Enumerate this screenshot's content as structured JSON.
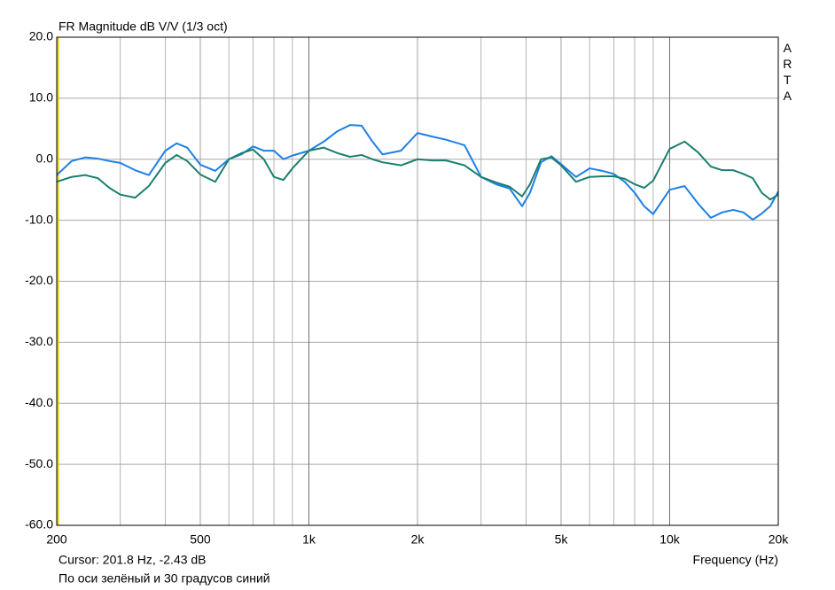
{
  "chart_data": {
    "type": "line",
    "title": "FR Magnitude dB V/V (1/3 oct)",
    "watermark": "ARTA",
    "x_label": "Frequency (Hz)",
    "cursor": {
      "label": "Cursor: 201.8 Hz, -2.43 dB",
      "x": 201.8,
      "color": "#e0d000"
    },
    "note": "По оси зелёный и 30 градусов синий",
    "x_scale": "log",
    "grid": true,
    "xlim": [
      200,
      20000
    ],
    "ylim": [
      -60,
      20
    ],
    "xticks": [
      200,
      500,
      {
        "value": 1000,
        "label": "1k"
      },
      {
        "value": 2000,
        "label": "2k"
      },
      {
        "value": 5000,
        "label": "5k"
      },
      {
        "value": 10000,
        "label": "10k"
      },
      {
        "value": 20000,
        "label": "20k"
      }
    ],
    "x_minor_grid": [
      300,
      400,
      600,
      700,
      800,
      900,
      3000,
      4000,
      6000,
      7000,
      8000,
      9000
    ],
    "yticks": [
      {
        "value": 20,
        "label": "20.0"
      },
      {
        "value": 10,
        "label": "10.0"
      },
      {
        "value": 0,
        "label": "0.0"
      },
      {
        "value": -10,
        "label": "-10.0"
      },
      {
        "value": -20,
        "label": "-20.0"
      },
      {
        "value": -30,
        "label": "-30.0"
      },
      {
        "value": -40,
        "label": "-40.0"
      },
      {
        "value": -50,
        "label": "-50.0"
      },
      {
        "value": -60,
        "label": "-60.0"
      }
    ],
    "x": [
      200,
      220,
      240,
      260,
      280,
      300,
      330,
      360,
      400,
      430,
      460,
      500,
      550,
      600,
      650,
      700,
      750,
      800,
      850,
      900,
      1000,
      1100,
      1200,
      1300,
      1400,
      1500,
      1600,
      1800,
      2000,
      2200,
      2400,
      2700,
      3000,
      3300,
      3600,
      3900,
      4100,
      4400,
      4700,
      5000,
      5500,
      6000,
      6500,
      7000,
      7500,
      8000,
      8500,
      9000,
      10000,
      11000,
      12000,
      13000,
      14000,
      15000,
      16000,
      17000,
      18000,
      19000,
      20000
    ],
    "series": [
      {
        "color": "#1e7fe6",
        "values": [
          -2.6,
          -0.3,
          0.3,
          0.1,
          -0.3,
          -0.6,
          -1.8,
          -2.6,
          1.4,
          2.6,
          1.9,
          -0.9,
          -1.9,
          0.0,
          0.8,
          2.1,
          1.4,
          1.4,
          0.0,
          0.6,
          1.4,
          2.9,
          4.6,
          5.6,
          5.5,
          2.9,
          0.8,
          1.4,
          4.3,
          3.7,
          3.2,
          2.3,
          -2.9,
          -4.1,
          -4.8,
          -7.7,
          -5.5,
          -0.5,
          0.5,
          -0.8,
          -2.9,
          -1.5,
          -1.9,
          -2.4,
          -3.7,
          -5.5,
          -7.7,
          -9.0,
          -5.0,
          -4.4,
          -7.3,
          -9.6,
          -8.7,
          -8.3,
          -8.7,
          -9.9,
          -8.9,
          -7.7,
          -5.3
        ]
      },
      {
        "color": "#1a7f6e",
        "values": [
          -3.7,
          -2.9,
          -2.6,
          -3.1,
          -4.7,
          -5.8,
          -6.3,
          -4.4,
          -0.6,
          0.7,
          -0.3,
          -2.5,
          -3.7,
          0.0,
          1.0,
          1.6,
          0.0,
          -2.9,
          -3.4,
          -1.5,
          1.4,
          1.9,
          1.0,
          0.4,
          0.7,
          0.0,
          -0.5,
          -1.0,
          0.0,
          -0.2,
          -0.2,
          -1.0,
          -2.9,
          -3.8,
          -4.5,
          -6.1,
          -4.1,
          0.0,
          0.3,
          -1.0,
          -3.7,
          -2.9,
          -2.8,
          -2.8,
          -3.2,
          -4.1,
          -4.7,
          -3.5,
          1.7,
          2.9,
          1.1,
          -1.2,
          -1.8,
          -1.8,
          -2.4,
          -3.1,
          -5.5,
          -6.6,
          -5.8
        ]
      }
    ]
  }
}
